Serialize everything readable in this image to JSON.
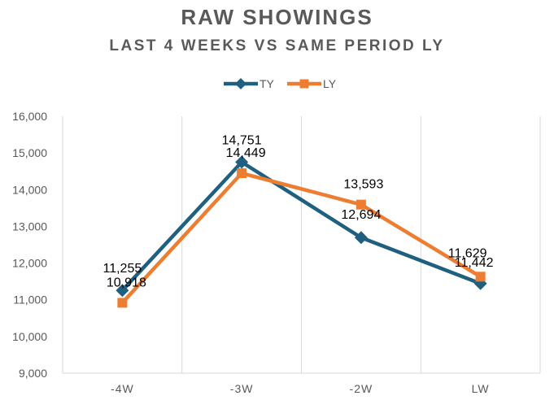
{
  "chart_data": {
    "type": "line",
    "title": "RAW SHOWINGS",
    "subtitle": "LAST 4 WEEKS VS SAME PERIOD LY",
    "categories": [
      "-4W",
      "-3W",
      "-2W",
      "LW"
    ],
    "series": [
      {
        "name": "TY",
        "values": [
          11255,
          14751,
          12694,
          11442
        ],
        "labels": [
          "11,255",
          "14,751",
          "12,694",
          "11,442"
        ],
        "color": "#1f5f7f",
        "marker": "diamond"
      },
      {
        "name": "LY",
        "values": [
          10918,
          14449,
          13593,
          11629
        ],
        "labels": [
          "10,918",
          "14,449",
          "13,593",
          "11,629"
        ],
        "color": "#ed7d31",
        "marker": "square"
      }
    ],
    "y_ticks": [
      "9,000",
      "10,000",
      "11,000",
      "12,000",
      "13,000",
      "14,000",
      "15,000",
      "16,000"
    ],
    "ylim": [
      9000,
      16000
    ],
    "xlabel": "",
    "ylabel": "",
    "grid": "vertical",
    "legend_position": "top-center"
  }
}
